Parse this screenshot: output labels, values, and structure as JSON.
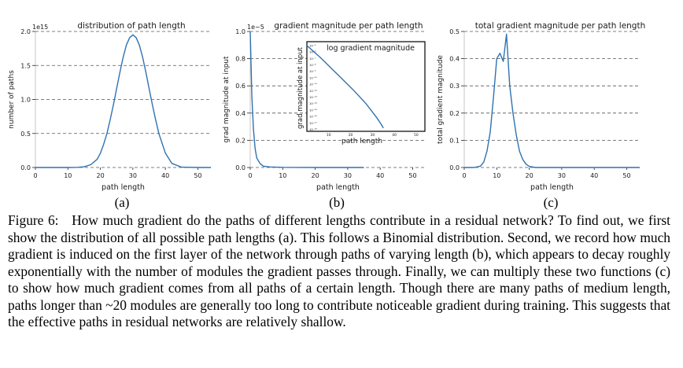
{
  "figure": {
    "caption_label": "Figure 6:",
    "caption_text": "How much gradient do the paths of different lengths contribute in a residual network? To find out, we first show the distribution of all possible path lengths (a). This follows a Binomial distribution. Second, we record how much gradient is induced on the first layer of the network through paths of varying length (b), which appears to decay roughly exponentially with the number of modules the gradient passes through. Finally, we can multiply these two functions (c) to show how much gradient comes from all paths of a certain length. Though there are many paths of medium length, paths longer than ~20 modules are generally too long to contribute noticeable gradient during training. This suggests that the effective paths in residual networks are relatively shallow.",
    "panel_labels": [
      "(a)",
      "(b)",
      "(c)"
    ]
  },
  "colors": {
    "line": "#2f72b0",
    "grid": "#555555",
    "axis": "#222222"
  },
  "chart_data": [
    {
      "type": "line",
      "title": "distribution of path length",
      "xlabel": "path length",
      "ylabel": "number of paths",
      "offset_label": "1e15",
      "xlim": [
        0,
        54
      ],
      "ylim": [
        0,
        2.0
      ],
      "xticks": [
        0,
        10,
        20,
        30,
        40,
        50
      ],
      "xtick_labels": [
        "0",
        "10",
        "20",
        "30",
        "40",
        "50"
      ],
      "yticks": [
        0,
        0.5,
        1.0,
        1.5,
        2.0
      ],
      "ytick_labels": [
        "0.0",
        "0.5",
        "1.0",
        "1.5",
        "2.0"
      ],
      "grid": "horizontal-dashed",
      "series": [
        {
          "x": [
            0,
            5,
            10,
            13,
            15,
            17,
            19,
            20,
            21,
            22,
            23,
            24,
            25,
            26,
            27,
            28,
            29,
            30,
            31,
            32,
            33,
            34,
            35,
            36,
            37,
            38,
            40,
            42,
            45,
            50,
            54
          ],
          "y": [
            0,
            0,
            0,
            0.002,
            0.01,
            0.04,
            0.12,
            0.21,
            0.34,
            0.5,
            0.7,
            0.92,
            1.16,
            1.4,
            1.62,
            1.8,
            1.91,
            1.95,
            1.91,
            1.8,
            1.62,
            1.4,
            1.16,
            0.92,
            0.7,
            0.5,
            0.21,
            0.06,
            0.005,
            0,
            0
          ]
        }
      ]
    },
    {
      "type": "line",
      "title": "gradient magnitude per path length",
      "xlabel": "path length",
      "ylabel": "grad magnitude at input",
      "offset_label": "1e−5",
      "xlim": [
        0,
        54
      ],
      "ylim": [
        0,
        1.0
      ],
      "xticks": [
        0,
        10,
        20,
        30,
        40,
        50
      ],
      "xtick_labels": [
        "0",
        "10",
        "20",
        "30",
        "40",
        "50"
      ],
      "yticks": [
        0,
        0.2,
        0.4,
        0.6,
        0.8,
        1.0
      ],
      "ytick_labels": [
        "0.0",
        "0.2",
        "0.4",
        "0.6",
        "0.8",
        "1.0"
      ],
      "grid": "horizontal-dashed",
      "series": [
        {
          "x": [
            0,
            0.5,
            1,
            1.5,
            2,
            3,
            4,
            6,
            10,
            20,
            35
          ],
          "y": [
            1.0,
            0.52,
            0.28,
            0.14,
            0.07,
            0.03,
            0.01,
            0.004,
            0.001,
            0,
            0
          ]
        }
      ],
      "inset": {
        "title": "log gradient magnitude",
        "xlabel": "path length",
        "ylabel": "grad magnitude at input",
        "xticks": [
          10,
          20,
          30,
          40,
          50
        ],
        "xtick_labels": [
          "10",
          "20",
          "30",
          "40",
          "50"
        ],
        "ytick_labels": [
          "10⁻⁵",
          "10⁻⁶",
          "10⁻⁷",
          "10⁻⁸",
          "10⁻⁹",
          "10⁻¹⁰",
          "10⁻¹¹",
          "10⁻¹²",
          "10⁻¹³",
          "10⁻¹⁴",
          "10⁻¹⁵",
          "10⁻¹⁶",
          "10⁻¹⁷",
          "10⁻¹⁸"
        ],
        "xlim": [
          0,
          54
        ],
        "ylim": [
          -18.3,
          -4.4
        ],
        "series": [
          {
            "x": [
              0,
              3,
              6,
              9,
              12,
              15,
              18,
              21,
              24,
              27,
              30,
              32,
              34,
              35
            ],
            "y": [
              -5,
              -5.9,
              -6.8,
              -7.8,
              -8.8,
              -9.8,
              -10.8,
              -11.8,
              -12.9,
              -14,
              -15.3,
              -16.2,
              -17.2,
              -17.8
            ]
          }
        ]
      }
    },
    {
      "type": "line",
      "title": "total gradient magnitude per path length",
      "xlabel": "path length",
      "ylabel": "total gradient magnitude",
      "offset_label": "",
      "xlim": [
        0,
        54
      ],
      "ylim": [
        0,
        0.5
      ],
      "xticks": [
        0,
        10,
        20,
        30,
        40,
        50
      ],
      "xtick_labels": [
        "0",
        "10",
        "20",
        "30",
        "40",
        "50"
      ],
      "yticks": [
        0,
        0.1,
        0.2,
        0.3,
        0.4,
        0.5
      ],
      "ytick_labels": [
        "0.0",
        "0.1",
        "0.2",
        "0.3",
        "0.4",
        "0.5"
      ],
      "grid": "horizontal-dashed",
      "series": [
        {
          "x": [
            0,
            3,
            5,
            6,
            7,
            8,
            9,
            10,
            11,
            12,
            13,
            14,
            15,
            16,
            17,
            18,
            19,
            20,
            21,
            22,
            24,
            27,
            30,
            54
          ],
          "y": [
            0,
            0,
            0.005,
            0.02,
            0.06,
            0.13,
            0.26,
            0.4,
            0.42,
            0.39,
            0.49,
            0.3,
            0.2,
            0.12,
            0.06,
            0.03,
            0.012,
            0.004,
            0.002,
            0,
            0,
            0,
            0,
            0
          ]
        }
      ]
    }
  ]
}
